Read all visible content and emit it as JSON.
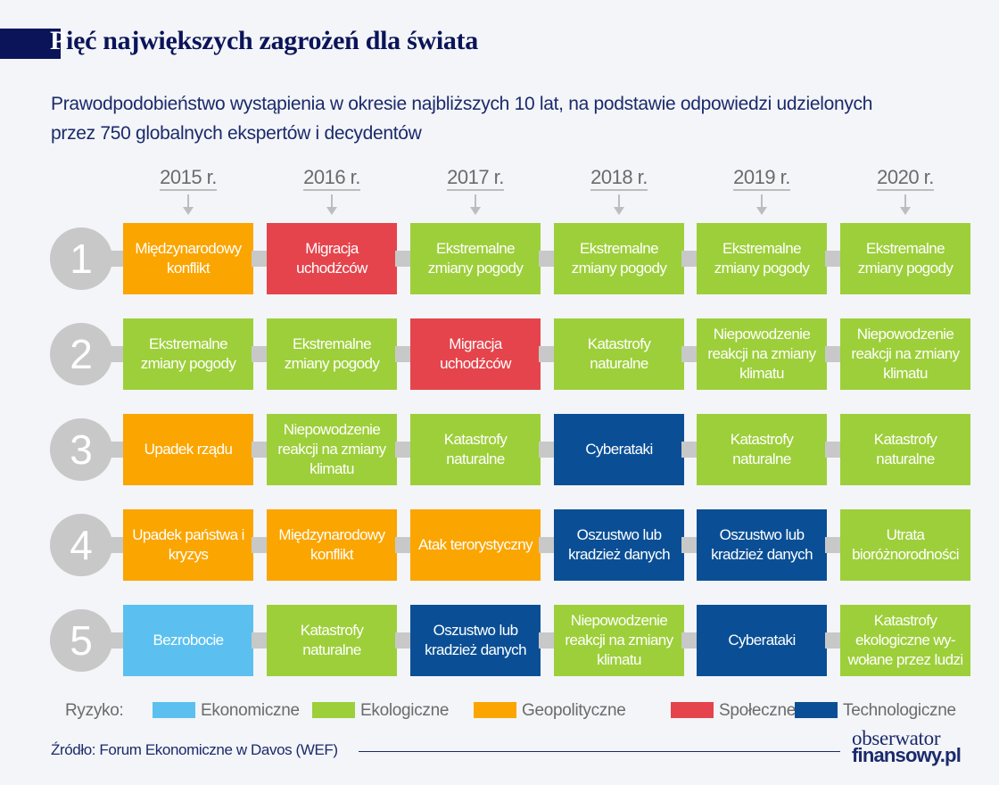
{
  "title": {
    "first_letter": "P",
    "rest": "ięć największych zagrożeń dla świata"
  },
  "subtitle": "Prawodpodobieństwo wystąpienia w okresie najbliższych 10 lat, na podstawie odpowiedzi udzielonych przez 750 globalnych ekspertów i decydentów",
  "years": [
    "2015 r.",
    "2016 r.",
    "2017 r.",
    "2018 r.",
    "2019 r.",
    "2020 r."
  ],
  "ranks": [
    "1",
    "2",
    "3",
    "4",
    "5"
  ],
  "categories": {
    "economic": {
      "label": "Ekonomiczne",
      "color": "#5bc0ef"
    },
    "ecological": {
      "label": "Ekologiczne",
      "color": "#9dcf3a"
    },
    "geopolitical": {
      "label": "Geopolityczne",
      "color": "#fba500"
    },
    "social": {
      "label": "Społeczne",
      "color": "#e5444c"
    },
    "technological": {
      "label": "Technologiczne",
      "color": "#0a4f96"
    }
  },
  "connector_color": "#c8c8c8",
  "rows": [
    [
      {
        "label": "Międzynarodowy konflikt",
        "category": "geopolitical"
      },
      {
        "label": "Migracja uchodźców",
        "category": "social"
      },
      {
        "label": "Ekstremalne zmiany pogody",
        "category": "ecological"
      },
      {
        "label": "Ekstremalne zmiany pogody",
        "category": "ecological"
      },
      {
        "label": "Ekstremalne zmiany pogody",
        "category": "ecological"
      },
      {
        "label": "Ekstremalne zmiany pogody",
        "category": "ecological"
      }
    ],
    [
      {
        "label": "Ekstremalne zmiany pogody",
        "category": "ecological"
      },
      {
        "label": "Ekstremalne zmiany pogody",
        "category": "ecological"
      },
      {
        "label": "Migracja uchodźców",
        "category": "social"
      },
      {
        "label": "Katastrofy naturalne",
        "category": "ecological"
      },
      {
        "label": "Niepowodzenie reakcji na zmiany klimatu",
        "category": "ecological"
      },
      {
        "label": "Niepowodzenie reakcji na zmiany klimatu",
        "category": "ecological"
      }
    ],
    [
      {
        "label": "Upadek rządu",
        "category": "geopolitical"
      },
      {
        "label": "Niepowodzenie reakcji na zmiany klimatu",
        "category": "ecological"
      },
      {
        "label": "Katastrofy naturalne",
        "category": "ecological"
      },
      {
        "label": "Cyberataki",
        "category": "technological"
      },
      {
        "label": "Katastrofy naturalne",
        "category": "ecological"
      },
      {
        "label": "Katastrofy naturalne",
        "category": "ecological"
      }
    ],
    [
      {
        "label": "Upadek państwa i kryzys",
        "category": "geopolitical"
      },
      {
        "label": "Międzynarodowy konflikt",
        "category": "geopolitical"
      },
      {
        "label": "Atak terorystyczny",
        "category": "geopolitical"
      },
      {
        "label": "Oszustwo lub kradzież danych",
        "category": "technological"
      },
      {
        "label": "Oszustwo lub kradzież danych",
        "category": "technological"
      },
      {
        "label": "Utrata bioróżnorodności",
        "category": "ecological"
      }
    ],
    [
      {
        "label": "Bezrobocie",
        "category": "economic"
      },
      {
        "label": "Katastrofy naturalne",
        "category": "ecological"
      },
      {
        "label": "Oszustwo lub kradzież danych",
        "category": "technological"
      },
      {
        "label": "Niepowodzenie reakcji na zmiany klimatu",
        "category": "ecological"
      },
      {
        "label": "Cyberataki",
        "category": "technological"
      },
      {
        "label": "Katastrofy ekologiczne wy-wołane przez ludzi",
        "category": "ecological"
      }
    ]
  ],
  "legend": {
    "label": "Ryzyko:",
    "order": [
      "economic",
      "ecological",
      "geopolitical",
      "social",
      "technological"
    ]
  },
  "source": "Źródło: Forum Ekonomiczne w Davos (WEF)",
  "logo": {
    "line1": "obserwator",
    "line2": "finansowy.pl"
  }
}
